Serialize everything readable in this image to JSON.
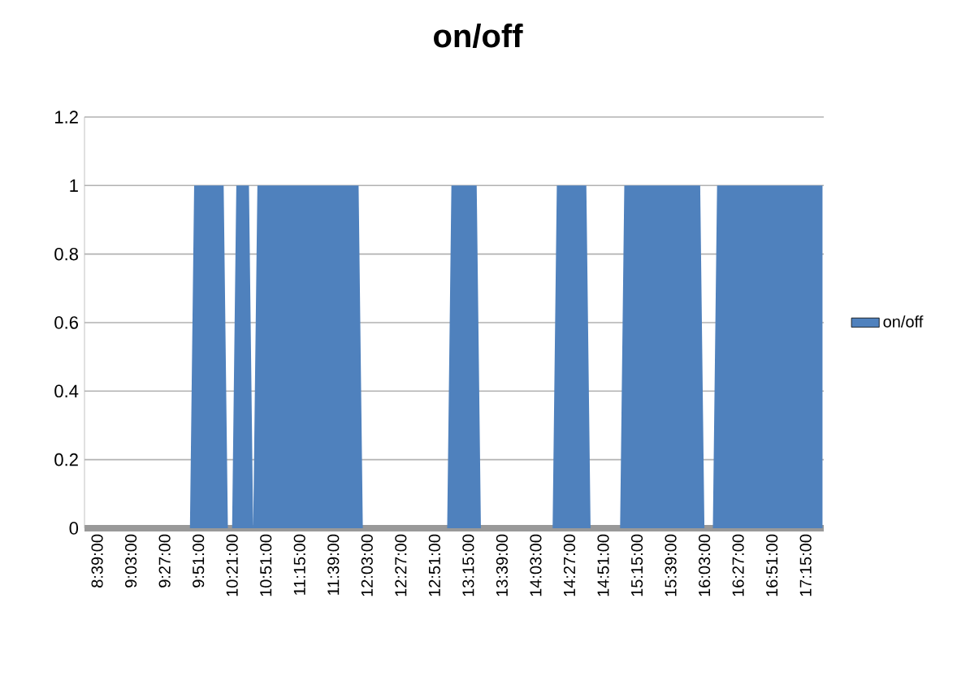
{
  "chart_data": {
    "type": "area",
    "title": "on/off",
    "categories": [
      "8:39:00",
      null,
      null,
      null,
      null,
      null,
      null,
      null,
      "9:03:00",
      null,
      null,
      null,
      null,
      null,
      null,
      null,
      "9:27:00",
      null,
      null,
      null,
      null,
      null,
      null,
      null,
      "9:51:00",
      null,
      null,
      null,
      null,
      null,
      null,
      null,
      "10:21:00",
      null,
      null,
      null,
      null,
      null,
      null,
      null,
      "10:51:00",
      null,
      null,
      null,
      null,
      null,
      null,
      null,
      "11:15:00",
      null,
      null,
      null,
      null,
      null,
      null,
      null,
      "11:39:00",
      null,
      null,
      null,
      null,
      null,
      null,
      null,
      "12:03:00",
      null,
      null,
      null,
      null,
      null,
      null,
      null,
      "12:27:00",
      null,
      null,
      null,
      null,
      null,
      null,
      null,
      "12:51:00",
      null,
      null,
      null,
      null,
      null,
      null,
      null,
      "13:15:00",
      null,
      null,
      null,
      null,
      null,
      null,
      null,
      "13:39:00",
      null,
      null,
      null,
      null,
      null,
      null,
      null,
      "14:03:00",
      null,
      null,
      null,
      null,
      null,
      null,
      null,
      "14:27:00",
      null,
      null,
      null,
      null,
      null,
      null,
      null,
      "14:51:00",
      null,
      null,
      null,
      null,
      null,
      null,
      null,
      "15:15:00",
      null,
      null,
      null,
      null,
      null,
      null,
      null,
      "15:39:00",
      null,
      null,
      null,
      null,
      null,
      null,
      null,
      "16:03:00",
      null,
      null,
      null,
      null,
      null,
      null,
      null,
      "16:27:00",
      null,
      null,
      null,
      null,
      null,
      null,
      null,
      "16:51:00",
      null,
      null,
      null,
      null,
      null,
      null,
      null,
      "17:15:00",
      null,
      null,
      null,
      null
    ],
    "series": [
      {
        "name": "on/off",
        "color": "#4f81bd",
        "values": [
          0,
          0,
          0,
          0,
          0,
          0,
          0,
          0,
          0,
          0,
          0,
          0,
          0,
          0,
          0,
          0,
          0,
          0,
          0,
          0,
          0,
          0,
          0,
          1,
          1,
          1,
          1,
          1,
          1,
          1,
          1,
          0,
          0,
          1,
          1,
          1,
          1,
          0,
          1,
          1,
          1,
          1,
          1,
          1,
          1,
          1,
          1,
          1,
          1,
          1,
          1,
          1,
          1,
          1,
          1,
          1,
          1,
          1,
          1,
          1,
          1,
          1,
          1,
          0,
          0,
          0,
          0,
          0,
          0,
          0,
          0,
          0,
          0,
          0,
          0,
          0,
          0,
          0,
          0,
          0,
          0,
          0,
          0,
          0,
          1,
          1,
          1,
          1,
          1,
          1,
          1,
          0,
          0,
          0,
          0,
          0,
          0,
          0,
          0,
          0,
          0,
          0,
          0,
          0,
          0,
          0,
          0,
          0,
          0,
          1,
          1,
          1,
          1,
          1,
          1,
          1,
          1,
          0,
          0,
          0,
          0,
          0,
          0,
          0,
          0,
          1,
          1,
          1,
          1,
          1,
          1,
          1,
          1,
          1,
          1,
          1,
          1,
          1,
          1,
          1,
          1,
          1,
          1,
          1,
          0,
          0,
          0,
          1,
          1,
          1,
          1,
          1,
          1,
          1,
          1,
          1,
          1,
          1,
          1,
          1,
          1,
          1,
          1,
          1,
          1,
          1,
          1,
          1,
          1,
          1,
          1,
          1,
          1
        ]
      }
    ],
    "ylim": [
      0,
      1.2
    ],
    "yticks": [
      0,
      0.2,
      0.4,
      0.6,
      0.8,
      1,
      1.2
    ],
    "grid": "y",
    "legend": "right"
  }
}
